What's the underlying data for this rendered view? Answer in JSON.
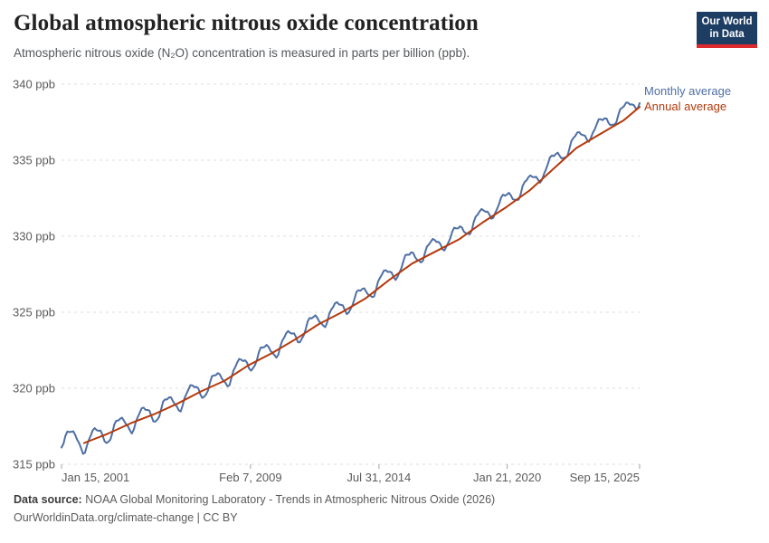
{
  "header": {
    "title": "Global atmospheric nitrous oxide concentration",
    "subtitle": "Atmospheric nitrous oxide (N₂O) concentration is measured in parts per billion (ppb).",
    "logo": {
      "line1": "Our World",
      "line2": "in Data",
      "bg_color": "#1d3d63",
      "bar_color": "#dc2a2f"
    }
  },
  "legend": [
    {
      "label": "Monthly average",
      "color": "#4e6fa5"
    },
    {
      "label": "Annual average",
      "color": "#b5390c"
    }
  ],
  "footer": {
    "source_label": "Data source:",
    "source_text": "NOAA Global Monitoring Laboratory - Trends in Atmospheric Nitrous Oxide (2026)",
    "link_text": "OurWorldinData.org/climate-change",
    "separator": "|",
    "license": "CC BY"
  },
  "chart_data": {
    "type": "line",
    "title": "Global atmospheric nitrous oxide concentration",
    "xlabel": "",
    "ylabel": "ppb",
    "ylim": [
      315,
      340
    ],
    "x_domain": [
      2001.04,
      2025.7
    ],
    "grid": true,
    "grid_color": "#dcdcdc",
    "tick_color": "#a3a3a3",
    "legend_position": "right-of-line-ends",
    "y_ticks": [
      {
        "value": 315,
        "label": "315 ppb"
      },
      {
        "value": 320,
        "label": "320 ppb"
      },
      {
        "value": 325,
        "label": "325 ppb"
      },
      {
        "value": 330,
        "label": "330 ppb"
      },
      {
        "value": 335,
        "label": "335 ppb"
      },
      {
        "value": 340,
        "label": "340 ppb"
      }
    ],
    "x_ticks": [
      {
        "t": 2001.04,
        "label": "Jan 15, 2001",
        "anchor": "start"
      },
      {
        "t": 2009.1,
        "label": "Feb 7, 2009",
        "anchor": "middle"
      },
      {
        "t": 2014.58,
        "label": "Jul 31, 2014",
        "anchor": "middle"
      },
      {
        "t": 2020.05,
        "label": "Jan 21, 2020",
        "anchor": "middle"
      },
      {
        "t": 2025.7,
        "label": "Sep 15, 2025",
        "anchor": "end"
      }
    ],
    "series": [
      {
        "name": "Annual average",
        "color": "#b5390c",
        "points": [
          [
            2002,
            316.4
          ],
          [
            2003,
            317.0
          ],
          [
            2004,
            317.7
          ],
          [
            2005,
            318.3
          ],
          [
            2006,
            319.0
          ],
          [
            2007,
            319.8
          ],
          [
            2008,
            320.5
          ],
          [
            2009,
            321.5
          ],
          [
            2010,
            322.3
          ],
          [
            2011,
            323.2
          ],
          [
            2012,
            324.2
          ],
          [
            2013,
            325.0
          ],
          [
            2014,
            325.9
          ],
          [
            2015,
            327.1
          ],
          [
            2016,
            328.2
          ],
          [
            2017,
            329.0
          ],
          [
            2018,
            329.8
          ],
          [
            2019,
            330.9
          ],
          [
            2020,
            331.9
          ],
          [
            2021,
            333.0
          ],
          [
            2022,
            334.4
          ],
          [
            2023,
            335.8
          ],
          [
            2024,
            336.7
          ],
          [
            2025,
            337.6
          ],
          [
            2025.7,
            338.5
          ]
        ]
      },
      {
        "name": "Monthly average",
        "color": "#4e6fa5",
        "end_value": 339.0,
        "derive": {
          "from": "Annual average",
          "start": 2001.04,
          "end": 2025.7,
          "step_months": 1,
          "baseline_start": 316.7,
          "offset_start": 0.05,
          "offset_end": 0.6,
          "amplitude_start": 0.65,
          "amplitude_end": 0.45,
          "phase_start": 0.2,
          "phase_end": 0.85
        }
      }
    ]
  }
}
